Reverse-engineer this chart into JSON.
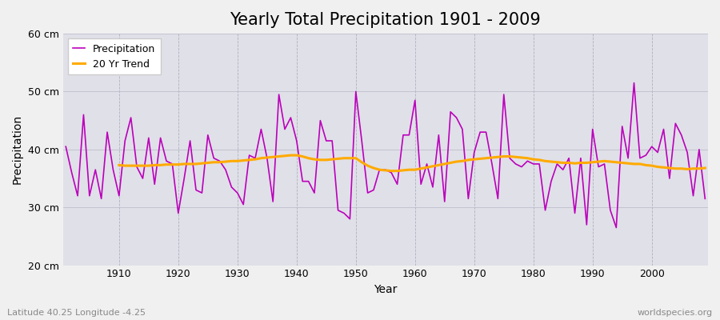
{
  "title": "Yearly Total Precipitation 1901 - 2009",
  "xlabel": "Year",
  "ylabel": "Precipitation",
  "subtitle": "Latitude 40.25 Longitude -4.25",
  "watermark": "worldspecies.org",
  "fig_bg_color": "#f0f0f0",
  "plot_bg_color": "#e0e0e8",
  "precip_color": "#bb00bb",
  "trend_color": "#ffaa00",
  "ylim": [
    20,
    60
  ],
  "yticks": [
    20,
    30,
    40,
    50,
    60
  ],
  "years": [
    1901,
    1902,
    1903,
    1904,
    1905,
    1906,
    1907,
    1908,
    1909,
    1910,
    1911,
    1912,
    1913,
    1914,
    1915,
    1916,
    1917,
    1918,
    1919,
    1920,
    1921,
    1922,
    1923,
    1924,
    1925,
    1926,
    1927,
    1928,
    1929,
    1930,
    1931,
    1932,
    1933,
    1934,
    1935,
    1936,
    1937,
    1938,
    1939,
    1940,
    1941,
    1942,
    1943,
    1944,
    1945,
    1946,
    1947,
    1948,
    1949,
    1950,
    1951,
    1952,
    1953,
    1954,
    1955,
    1956,
    1957,
    1958,
    1959,
    1960,
    1961,
    1962,
    1963,
    1964,
    1965,
    1966,
    1967,
    1968,
    1969,
    1970,
    1971,
    1972,
    1973,
    1974,
    1975,
    1976,
    1977,
    1978,
    1979,
    1980,
    1981,
    1982,
    1983,
    1984,
    1985,
    1986,
    1987,
    1988,
    1989,
    1990,
    1991,
    1992,
    1993,
    1994,
    1995,
    1996,
    1997,
    1998,
    1999,
    2000,
    2001,
    2002,
    2003,
    2004,
    2005,
    2006,
    2007,
    2008,
    2009
  ],
  "precip": [
    40.5,
    36.0,
    32.0,
    46.0,
    32.0,
    36.5,
    31.5,
    43.0,
    36.5,
    32.0,
    41.5,
    45.5,
    37.0,
    35.0,
    42.0,
    34.0,
    42.0,
    38.0,
    37.5,
    29.0,
    35.0,
    41.5,
    33.0,
    32.5,
    42.5,
    38.5,
    38.0,
    36.5,
    33.5,
    32.5,
    30.5,
    39.0,
    38.5,
    43.5,
    38.5,
    31.0,
    49.5,
    43.5,
    45.5,
    41.5,
    34.5,
    34.5,
    32.5,
    45.0,
    41.5,
    41.5,
    29.5,
    29.0,
    28.0,
    50.0,
    41.5,
    32.5,
    33.0,
    36.5,
    36.5,
    36.0,
    34.0,
    42.5,
    42.5,
    48.5,
    34.0,
    37.5,
    33.5,
    42.5,
    31.0,
    46.5,
    45.5,
    43.5,
    31.5,
    39.5,
    43.0,
    43.0,
    37.5,
    31.5,
    49.5,
    38.5,
    37.5,
    37.0,
    38.0,
    37.5,
    37.5,
    29.5,
    34.5,
    37.5,
    36.5,
    38.5,
    29.0,
    38.5,
    27.0,
    43.5,
    37.0,
    37.5,
    29.5,
    26.5,
    44.0,
    38.5,
    51.5,
    38.5,
    39.0,
    40.5,
    39.5,
    43.5,
    35.0,
    44.5,
    42.5,
    39.5,
    32.0,
    40.0,
    31.5
  ],
  "trend_years": [
    1910,
    1911,
    1912,
    1913,
    1914,
    1915,
    1916,
    1917,
    1918,
    1919,
    1920,
    1921,
    1922,
    1923,
    1924,
    1925,
    1926,
    1927,
    1928,
    1929,
    1930,
    1931,
    1932,
    1933,
    1934,
    1935,
    1936,
    1937,
    1938,
    1939,
    1940,
    1941,
    1942,
    1943,
    1944,
    1945,
    1946,
    1947,
    1948,
    1949,
    1950,
    1951,
    1952,
    1953,
    1954,
    1955,
    1956,
    1957,
    1958,
    1959,
    1960,
    1961,
    1962,
    1963,
    1964,
    1965,
    1966,
    1967,
    1968,
    1969,
    1970,
    1971,
    1972,
    1973,
    1974,
    1975,
    1976,
    1977,
    1978,
    1979,
    1980,
    1981,
    1982,
    1983,
    1984,
    1985,
    1986,
    1987,
    1988,
    1989,
    1990,
    1991,
    1992,
    1993,
    1994,
    1995,
    1996,
    1997,
    1998,
    1999,
    2000,
    2001,
    2002,
    2003,
    2004,
    2005,
    2006,
    2007,
    2008,
    2009
  ],
  "trend": [
    37.3,
    37.2,
    37.2,
    37.2,
    37.2,
    37.2,
    37.3,
    37.3,
    37.4,
    37.4,
    37.4,
    37.5,
    37.5,
    37.5,
    37.6,
    37.7,
    37.8,
    37.8,
    37.9,
    38.0,
    38.0,
    38.1,
    38.2,
    38.3,
    38.5,
    38.6,
    38.7,
    38.8,
    38.9,
    39.0,
    39.0,
    38.8,
    38.5,
    38.3,
    38.2,
    38.2,
    38.3,
    38.4,
    38.5,
    38.5,
    38.5,
    37.8,
    37.2,
    36.8,
    36.5,
    36.4,
    36.3,
    36.3,
    36.4,
    36.5,
    36.5,
    36.7,
    36.9,
    37.1,
    37.3,
    37.5,
    37.7,
    37.9,
    38.0,
    38.2,
    38.3,
    38.4,
    38.5,
    38.6,
    38.7,
    38.8,
    38.8,
    38.7,
    38.6,
    38.5,
    38.3,
    38.2,
    38.0,
    37.9,
    37.8,
    37.7,
    37.7,
    37.6,
    37.7,
    37.7,
    37.8,
    37.9,
    38.0,
    37.9,
    37.8,
    37.7,
    37.6,
    37.5,
    37.5,
    37.3,
    37.2,
    37.0,
    36.9,
    36.8,
    36.7,
    36.7,
    36.6,
    36.7,
    36.7,
    36.8
  ],
  "xticks": [
    1910,
    1920,
    1930,
    1940,
    1950,
    1960,
    1970,
    1980,
    1990,
    2000
  ],
  "title_fontsize": 15,
  "axis_fontsize": 10,
  "tick_fontsize": 9,
  "legend_fontsize": 9,
  "subtitle_fontsize": 8,
  "watermark_fontsize": 8
}
